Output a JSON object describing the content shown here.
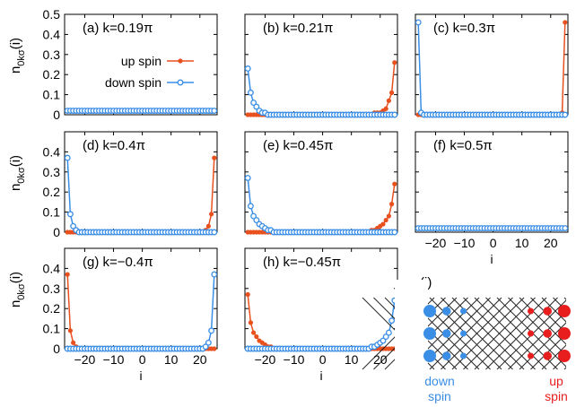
{
  "figure": {
    "ylabel_main": "n",
    "ylabel_sub": "0kσ",
    "ylabel_tail": "(i)",
    "xlabel": "i",
    "legend": {
      "up": "up spin",
      "down": "down spin"
    },
    "colors": {
      "up": "#e8501e",
      "down": "#3a8ee6",
      "lattice": "#000000"
    }
  },
  "chart_data": [
    {
      "type": "line",
      "panel": "(a) k=0.19π",
      "ylim": [
        0,
        0.5
      ],
      "xlim": [
        -27,
        26
      ],
      "yticks": [
        "0",
        "0.1",
        "0.2",
        "0.3",
        "0.4",
        "0.5"
      ],
      "xticks": [],
      "legend": "center",
      "series": [
        {
          "name": "up spin",
          "x_range": [
            -26,
            25
          ],
          "edge": "right",
          "peaks": [
            0.02
          ],
          "floor": 0.02
        },
        {
          "name": "down spin",
          "x_range": [
            -26,
            25
          ],
          "edge": "left",
          "peaks": [
            0.02
          ],
          "floor": 0.02
        }
      ]
    },
    {
      "type": "line",
      "panel": "(b) k=0.21π",
      "ylim": [
        0,
        0.5
      ],
      "xlim": [
        -27,
        26
      ],
      "yticks": [],
      "xticks": [],
      "series": [
        {
          "name": "up spin",
          "x_range": [
            -26,
            25
          ],
          "edge": "right",
          "peaks": [
            0.26,
            0.11,
            0.07,
            0.03,
            0.02,
            0.01,
            0.01,
            0.01
          ],
          "floor": 0.0
        },
        {
          "name": "down spin",
          "x_range": [
            -26,
            25
          ],
          "edge": "left",
          "peaks": [
            0.23,
            0.11,
            0.06,
            0.04,
            0.02,
            0.01,
            0.01
          ],
          "floor": 0.0
        }
      ]
    },
    {
      "type": "line",
      "panel": "(c) k=0.3π",
      "ylim": [
        0,
        0.5
      ],
      "xlim": [
        -27,
        26
      ],
      "yticks": [],
      "xticks": [],
      "series": [
        {
          "name": "up spin",
          "x_range": [
            -26,
            25
          ],
          "edge": "right",
          "peaks": [
            0.46,
            0.01
          ],
          "floor": 0.0
        },
        {
          "name": "down spin",
          "x_range": [
            -26,
            25
          ],
          "edge": "left",
          "peaks": [
            0.46,
            0.01
          ],
          "floor": 0.0
        }
      ]
    },
    {
      "type": "line",
      "panel": "(d) k=0.4π",
      "ylim": [
        0,
        0.5
      ],
      "xlim": [
        -27,
        26
      ],
      "yticks": [
        "0",
        "0.1",
        "0.2",
        "0.3",
        "0.4"
      ],
      "xticks": [],
      "series": [
        {
          "name": "up spin",
          "x_range": [
            -26,
            25
          ],
          "edge": "right",
          "peaks": [
            0.37,
            0.09,
            0.03,
            0.01
          ],
          "floor": 0.0
        },
        {
          "name": "down spin",
          "x_range": [
            -26,
            25
          ],
          "edge": "left",
          "peaks": [
            0.37,
            0.09,
            0.03,
            0.01
          ],
          "floor": 0.0
        }
      ]
    },
    {
      "type": "line",
      "panel": "(e) k=0.45π",
      "ylim": [
        0,
        0.5
      ],
      "xlim": [
        -27,
        26
      ],
      "yticks": [],
      "xticks": [],
      "series": [
        {
          "name": "up spin",
          "x_range": [
            -26,
            25
          ],
          "edge": "right",
          "peaks": [
            0.24,
            0.14,
            0.08,
            0.06,
            0.04,
            0.03,
            0.02,
            0.01,
            0.01
          ],
          "floor": 0.0
        },
        {
          "name": "down spin",
          "x_range": [
            -26,
            25
          ],
          "edge": "left",
          "peaks": [
            0.27,
            0.13,
            0.08,
            0.06,
            0.04,
            0.03,
            0.02,
            0.01,
            0.01
          ],
          "floor": 0.0
        }
      ]
    },
    {
      "type": "line",
      "panel": "(f) k=0.5π",
      "ylim": [
        0,
        0.5
      ],
      "xlim": [
        -27,
        26
      ],
      "yticks": [],
      "xticks": [
        "−20",
        "−10",
        "0",
        "10",
        "20"
      ],
      "xlabel": "i",
      "series": [
        {
          "name": "up spin",
          "x_range": [
            -26,
            25
          ],
          "edge": "right",
          "peaks": [
            0.02
          ],
          "floor": 0.02
        },
        {
          "name": "down spin",
          "x_range": [
            -26,
            25
          ],
          "edge": "left",
          "peaks": [
            0.02
          ],
          "floor": 0.02
        }
      ]
    },
    {
      "type": "line",
      "panel": "(g) k=−0.4π",
      "ylim": [
        0,
        0.5
      ],
      "xlim": [
        -27,
        26
      ],
      "yticks": [
        "0",
        "0.1",
        "0.2",
        "0.3",
        "0.4"
      ],
      "xticks": [
        "−20",
        "−10",
        "0",
        "10",
        "20"
      ],
      "xlabel": "i",
      "series": [
        {
          "name": "up spin",
          "x_range": [
            -26,
            25
          ],
          "edge": "left",
          "peaks": [
            0.37,
            0.09,
            0.03,
            0.01
          ],
          "floor": 0.0
        },
        {
          "name": "down spin",
          "x_range": [
            -26,
            25
          ],
          "edge": "right",
          "peaks": [
            0.37,
            0.09,
            0.03,
            0.01
          ],
          "floor": 0.0
        }
      ]
    },
    {
      "type": "line",
      "panel": "(h) k=−0.45π",
      "ylim": [
        0,
        0.5
      ],
      "xlim": [
        -27,
        26
      ],
      "yticks": [],
      "xticks": [
        "−20",
        "−10",
        "0",
        "10",
        "20"
      ],
      "xlabel": "i",
      "series": [
        {
          "name": "up spin",
          "x_range": [
            -26,
            25
          ],
          "edge": "left",
          "peaks": [
            0.27,
            0.13,
            0.08,
            0.06,
            0.04,
            0.03,
            0.02,
            0.01,
            0.01
          ],
          "floor": 0.0
        },
        {
          "name": "down spin",
          "x_range": [
            -26,
            25
          ],
          "edge": "right",
          "peaks": [
            0.24,
            0.14,
            0.08,
            0.06,
            0.04,
            0.03,
            0.02,
            0.01,
            0.01
          ],
          "floor": 0.0
        }
      ]
    }
  ],
  "schematic": {
    "label": "(i)",
    "left_caption": [
      "down",
      "spin"
    ],
    "right_caption": [
      "up",
      "spin"
    ],
    "rows": 3,
    "left_dot_sizes": [
      1.0,
      0.55,
      0.3
    ],
    "right_dot_sizes": [
      1.0,
      0.55,
      0.3
    ]
  }
}
